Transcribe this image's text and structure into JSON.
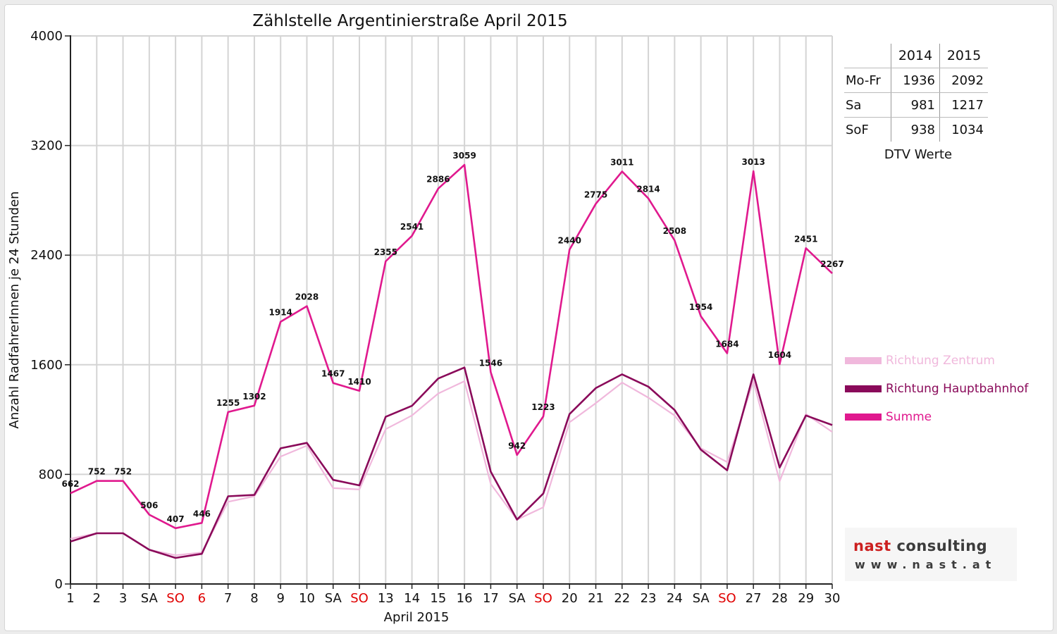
{
  "chart_data": {
    "type": "line",
    "title": "Zählstelle Argentinierstraße April 2015",
    "xlabel": "April 2015",
    "ylabel": "Anzahl RadfahrerInnen je 24 Stunden",
    "ylim": [
      0,
      4000
    ],
    "yticks": [
      0,
      800,
      1600,
      2400,
      3200,
      4000
    ],
    "x": [
      1,
      2,
      3,
      4,
      5,
      6,
      7,
      8,
      9,
      10,
      11,
      12,
      13,
      14,
      15,
      16,
      17,
      18,
      19,
      20,
      21,
      22,
      23,
      24,
      25,
      26,
      27,
      28,
      29,
      30
    ],
    "tick_labels": [
      "1",
      "2",
      "3",
      "SA",
      "SO",
      "6",
      "7",
      "8",
      "9",
      "10",
      "SA",
      "SO",
      "13",
      "14",
      "15",
      "16",
      "17",
      "SA",
      "SO",
      "20",
      "21",
      "22",
      "23",
      "24",
      "SA",
      "SO",
      "27",
      "28",
      "29",
      "30"
    ],
    "red_ticks": [
      "SO",
      "SO",
      "6",
      "SO",
      "SO"
    ],
    "grid": "vertical and horizontal",
    "legend_position": "right",
    "series": [
      {
        "name": "Richtung Zentrum",
        "color": "#f0b8dc",
        "values": [
          330,
          370,
          370,
          250,
          210,
          230,
          600,
          640,
          930,
          1010,
          700,
          690,
          1130,
          1230,
          1390,
          1480,
          730,
          470,
          560,
          1180,
          1320,
          1470,
          1360,
          1230,
          990,
          890,
          1480,
          750,
          1240,
          1110
        ]
      },
      {
        "name": "Richtung Hauptbahnhof",
        "color": "#8a0a5a",
        "values": [
          310,
          370,
          370,
          250,
          190,
          220,
          640,
          650,
          990,
          1030,
          760,
          720,
          1220,
          1300,
          1500,
          1580,
          820,
          470,
          660,
          1240,
          1430,
          1530,
          1440,
          1270,
          980,
          830,
          1530,
          850,
          1230,
          1160
        ]
      },
      {
        "name": "Summe",
        "color": "#e0198e",
        "values": [
          662,
          752,
          752,
          506,
          407,
          446,
          1255,
          1302,
          1914,
          2028,
          1467,
          1410,
          2355,
          2541,
          2886,
          3059,
          1546,
          942,
          1223,
          2440,
          2775,
          3011,
          2814,
          2508,
          1954,
          1684,
          3013,
          1604,
          2451,
          2267
        ]
      }
    ],
    "data_labels": [
      "662",
      "752",
      "752",
      "506",
      "407",
      "446",
      "1255",
      "1302",
      "1914",
      "2028",
      "1467",
      "1410",
      "2355",
      "2541",
      "2886",
      "3059",
      "1546",
      "942",
      "1223",
      "2440",
      "2775",
      "3011",
      "2814",
      "2508",
      "1954",
      "1684",
      "3013",
      "1604",
      "2451",
      "2267"
    ]
  },
  "dtv_table": {
    "caption": "DTV Werte",
    "year1": "2014",
    "year2": "2015",
    "rows": [
      {
        "label": "Mo-Fr",
        "v2014": "1936",
        "v2015": "2092"
      },
      {
        "label": "Sa",
        "v2014": "981",
        "v2015": "1217"
      },
      {
        "label": "SoF",
        "v2014": "938",
        "v2015": "1034"
      }
    ]
  },
  "logo": {
    "name_part1": "nast",
    "name_part2": " consulting",
    "url": "www.nast.at",
    "accent_color": "#cc1f1f"
  },
  "colors": {
    "grid": "#d4d4d4",
    "axis": "#222222",
    "holiday_red": "#e00000"
  }
}
